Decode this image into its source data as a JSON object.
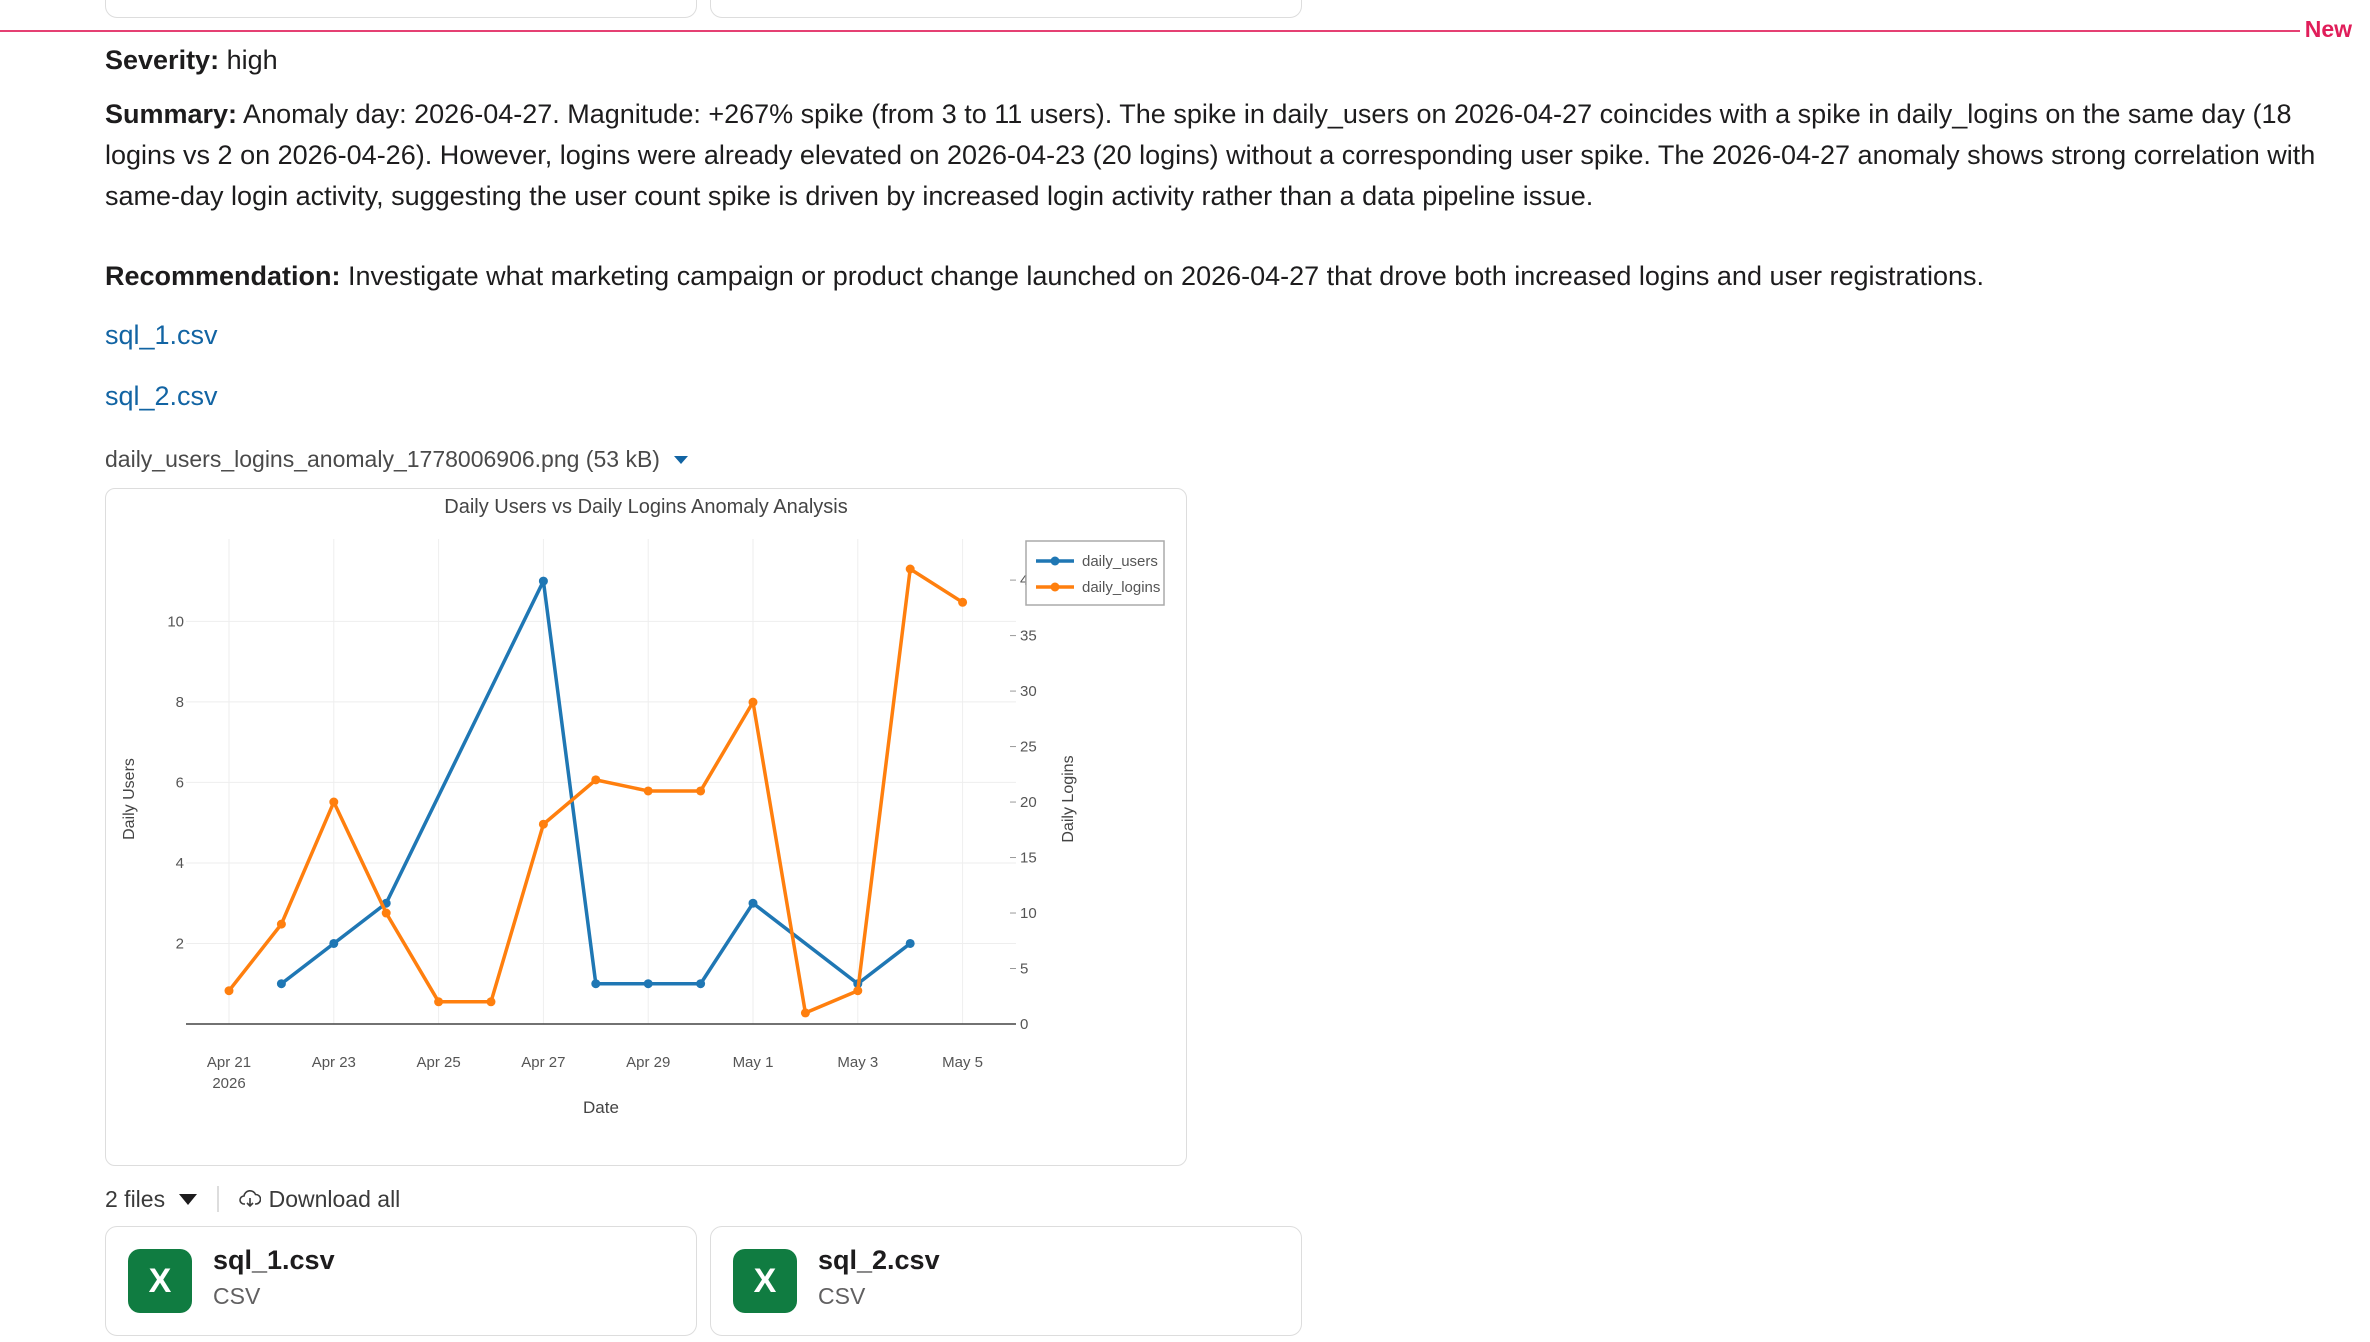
{
  "marker": {
    "new_label": "New"
  },
  "message": {
    "severity_label": "Severity:",
    "severity_value": " high",
    "summary_label": "Summary:",
    "summary_text": " Anomaly day: 2026-04-27. Magnitude: +267% spike (from 3 to 11 users). The spike in daily_users on 2026-04-27 coincides with a spike in daily_logins on the same day (18 logins vs 2 on 2026-04-26). However, logins were already elevated on 2026-04-23 (20 logins) without a corresponding user spike. The 2026-04-27 anomaly shows strong correlation with same-day login activity, suggesting the user count spike is driven by increased login activity rather than a data pipeline issue.",
    "recommendation_label": "Recommendation:",
    "recommendation_text": " Investigate what marketing campaign or product change launched on 2026-04-27 that drove both increased logins and user registrations."
  },
  "links": [
    "sql_1.csv",
    "sql_2.csv"
  ],
  "image_attachment": {
    "filename": "daily_users_logins_anomaly_1778006906.png (53 kB)"
  },
  "chart_data": {
    "type": "line",
    "title": "Daily Users vs Daily Logins Anomaly Analysis",
    "xlabel": "Date",
    "ylabel_left": "Daily Users",
    "ylabel_right": "Daily Logins",
    "x_ticks": [
      "Apr 21",
      "Apr 23",
      "Apr 25",
      "Apr 27",
      "Apr 29",
      "May 1",
      "May 3",
      "May 5"
    ],
    "x_tick_sub": "2026",
    "y_left_ticks": [
      "2",
      "4",
      "6",
      "8",
      "10"
    ],
    "y_right_ticks": [
      "0",
      "5",
      "10",
      "15",
      "20",
      "25",
      "30",
      "35",
      "40"
    ],
    "ylim_left": [
      0,
      11.3
    ],
    "ylim_right": [
      0,
      41
    ],
    "legend_position": "top-right",
    "series": [
      {
        "name": "daily_users",
        "axis": "left",
        "color": "#1f77b4",
        "x": [
          "2026-04-22",
          "2026-04-23",
          "2026-04-24",
          "2026-04-27",
          "2026-04-28",
          "2026-04-29",
          "2026-04-30",
          "2026-05-01",
          "2026-05-03",
          "2026-05-04"
        ],
        "values": [
          1,
          2,
          3,
          11,
          1,
          1,
          1,
          3,
          1,
          2
        ]
      },
      {
        "name": "daily_logins",
        "axis": "right",
        "color": "#ff7f0e",
        "x": [
          "2026-04-21",
          "2026-04-22",
          "2026-04-23",
          "2026-04-24",
          "2026-04-25",
          "2026-04-26",
          "2026-04-27",
          "2026-04-28",
          "2026-04-29",
          "2026-04-30",
          "2026-05-01",
          "2026-05-02",
          "2026-05-03",
          "2026-05-04",
          "2026-05-05"
        ],
        "values": [
          3,
          9,
          20,
          10,
          2,
          2,
          18,
          22,
          21,
          21,
          29,
          1,
          3,
          41,
          38
        ]
      }
    ]
  },
  "files": {
    "count_label": "2 files",
    "download_all": "Download all",
    "items": [
      {
        "name": "sql_1.csv",
        "type": "CSV",
        "icon_letter": "X"
      },
      {
        "name": "sql_2.csv",
        "type": "CSV",
        "icon_letter": "X"
      }
    ]
  },
  "colors": {
    "accent": "#1264a3",
    "new_marker": "#e01e5a",
    "excel_green": "#107c41"
  }
}
